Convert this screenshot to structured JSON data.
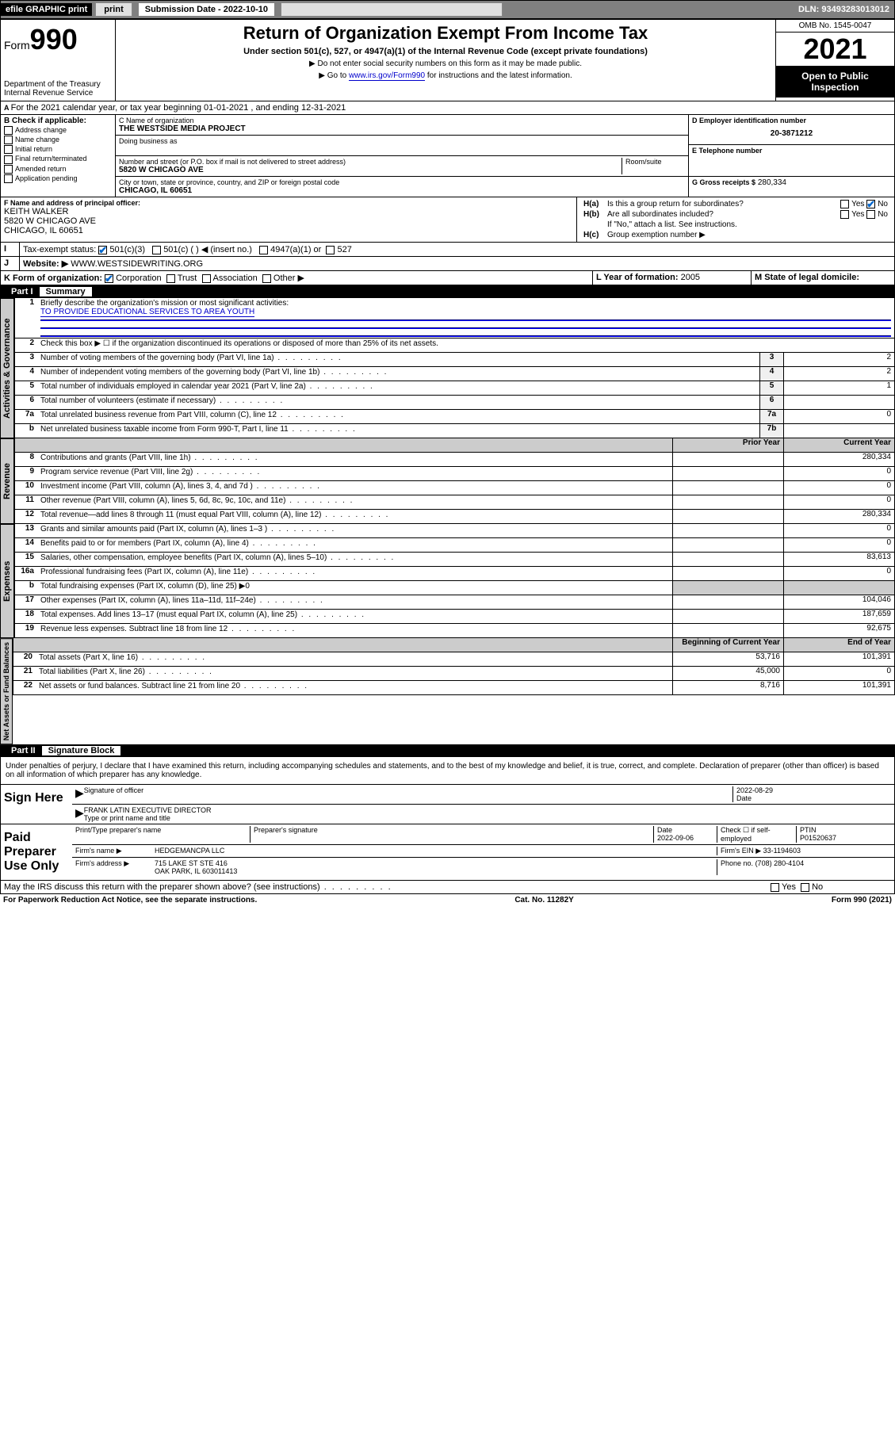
{
  "topbar": {
    "efile": "efile GRAPHIC print",
    "submission_lbl": "Submission Date - 2022-10-10",
    "dln": "DLN: 93493283013012"
  },
  "header": {
    "form": "Form",
    "formno": "990",
    "dept": "Department of the Treasury Internal Revenue Service",
    "title": "Return of Organization Exempt From Income Tax",
    "sub": "Under section 501(c), 527, or 4947(a)(1) of the Internal Revenue Code (except private foundations)",
    "note1": "▶ Do not enter social security numbers on this form as it may be made public.",
    "note2_pre": "▶ Go to ",
    "note2_link": "www.irs.gov/Form990",
    "note2_post": " for instructions and the latest information.",
    "omb": "OMB No. 1545-0047",
    "year": "2021",
    "open": "Open to Public Inspection"
  },
  "periodA": "For the 2021 calendar year, or tax year beginning 01-01-2021 , and ending 12-31-2021",
  "boxB": {
    "title": "B Check if applicable:",
    "items": [
      "Address change",
      "Name change",
      "Initial return",
      "Final return/terminated",
      "Amended return",
      "Application pending"
    ]
  },
  "boxC": {
    "lbl_name": "C Name of organization",
    "name": "THE WESTSIDE MEDIA PROJECT",
    "lbl_dba": "Doing business as",
    "lbl_addr": "Number and street (or P.O. box if mail is not delivered to street address)",
    "lbl_room": "Room/suite",
    "addr": "5820 W CHICAGO AVE",
    "lbl_city": "City or town, state or province, country, and ZIP or foreign postal code",
    "city": "CHICAGO, IL  60651"
  },
  "boxD": {
    "lbl": "D Employer identification number",
    "val": "20-3871212"
  },
  "boxE": {
    "lbl": "E Telephone number"
  },
  "boxG": {
    "lbl": "G Gross receipts $",
    "val": "280,334"
  },
  "boxF": {
    "lbl": "F Name and address of principal officer:",
    "name": "KEITH WALKER",
    "addr1": "5820 W CHICAGO AVE",
    "addr2": "CHICAGO, IL  60651"
  },
  "boxH": {
    "a_lbl": "H(a)",
    "a_txt": "Is this a group return for subordinates?",
    "b_lbl": "H(b)",
    "b_txt": "Are all subordinates included?",
    "note": "If \"No,\" attach a list. See instructions.",
    "c_lbl": "H(c)",
    "c_txt": "Group exemption number ▶",
    "yes": "Yes",
    "no": "No"
  },
  "boxI": {
    "lbl": "Tax-exempt status:",
    "opts": [
      "501(c)(3)",
      "501(c) (  ) ◀ (insert no.)",
      "4947(a)(1) or",
      "527"
    ]
  },
  "boxJ": {
    "lbl": "Website: ▶",
    "val": "WWW.WESTSIDEWRITING.ORG"
  },
  "boxK": {
    "lbl": "K Form of organization:",
    "opts": [
      "Corporation",
      "Trust",
      "Association",
      "Other ▶"
    ]
  },
  "boxL": {
    "lbl": "L Year of formation:",
    "val": "2005"
  },
  "boxM": {
    "lbl": "M State of legal domicile:"
  },
  "partI": {
    "hdr_pt": "Part I",
    "hdr_ttl": "Summary",
    "l1_lbl": "Briefly describe the organization's mission or most significant activities:",
    "l1_val": "TO PROVIDE EDUCATIONAL SERVICES TO AREA YOUTH",
    "l2": "Check this box ▶ ☐ if the organization discontinued its operations or disposed of more than 25% of its net assets.",
    "tabs": {
      "gov": "Activities & Governance",
      "rev": "Revenue",
      "exp": "Expenses",
      "net": "Net Assets or Fund Balances"
    },
    "lines_gov": [
      {
        "n": "3",
        "d": "Number of voting members of the governing body (Part VI, line 1a)",
        "b": "3",
        "v": "2"
      },
      {
        "n": "4",
        "d": "Number of independent voting members of the governing body (Part VI, line 1b)",
        "b": "4",
        "v": "2"
      },
      {
        "n": "5",
        "d": "Total number of individuals employed in calendar year 2021 (Part V, line 2a)",
        "b": "5",
        "v": "1"
      },
      {
        "n": "6",
        "d": "Total number of volunteers (estimate if necessary)",
        "b": "6",
        "v": ""
      },
      {
        "n": "7a",
        "d": "Total unrelated business revenue from Part VIII, column (C), line 12",
        "b": "7a",
        "v": "0"
      },
      {
        "n": "b",
        "d": "Net unrelated business taxable income from Form 990-T, Part I, line 11",
        "b": "7b",
        "v": ""
      }
    ],
    "col_prior": "Prior Year",
    "col_curr": "Current Year",
    "lines_rev": [
      {
        "n": "8",
        "d": "Contributions and grants (Part VIII, line 1h)",
        "p": "",
        "c": "280,334"
      },
      {
        "n": "9",
        "d": "Program service revenue (Part VIII, line 2g)",
        "p": "",
        "c": "0"
      },
      {
        "n": "10",
        "d": "Investment income (Part VIII, column (A), lines 3, 4, and 7d )",
        "p": "",
        "c": "0"
      },
      {
        "n": "11",
        "d": "Other revenue (Part VIII, column (A), lines 5, 6d, 8c, 9c, 10c, and 11e)",
        "p": "",
        "c": "0"
      },
      {
        "n": "12",
        "d": "Total revenue—add lines 8 through 11 (must equal Part VIII, column (A), line 12)",
        "p": "",
        "c": "280,334"
      }
    ],
    "lines_exp": [
      {
        "n": "13",
        "d": "Grants and similar amounts paid (Part IX, column (A), lines 1–3 )",
        "p": "",
        "c": "0"
      },
      {
        "n": "14",
        "d": "Benefits paid to or for members (Part IX, column (A), line 4)",
        "p": "",
        "c": "0"
      },
      {
        "n": "15",
        "d": "Salaries, other compensation, employee benefits (Part IX, column (A), lines 5–10)",
        "p": "",
        "c": "83,613"
      },
      {
        "n": "16a",
        "d": "Professional fundraising fees (Part IX, column (A), line 11e)",
        "p": "",
        "c": "0"
      },
      {
        "n": "b",
        "d": "Total fundraising expenses (Part IX, column (D), line 25) ▶0",
        "shade": true
      },
      {
        "n": "17",
        "d": "Other expenses (Part IX, column (A), lines 11a–11d, 11f–24e)",
        "p": "",
        "c": "104,046"
      },
      {
        "n": "18",
        "d": "Total expenses. Add lines 13–17 (must equal Part IX, column (A), line 25)",
        "p": "",
        "c": "187,659"
      },
      {
        "n": "19",
        "d": "Revenue less expenses. Subtract line 18 from line 12",
        "p": "",
        "c": "92,675"
      }
    ],
    "col_beg": "Beginning of Current Year",
    "col_end": "End of Year",
    "lines_net": [
      {
        "n": "20",
        "d": "Total assets (Part X, line 16)",
        "p": "53,716",
        "c": "101,391"
      },
      {
        "n": "21",
        "d": "Total liabilities (Part X, line 26)",
        "p": "45,000",
        "c": "0"
      },
      {
        "n": "22",
        "d": "Net assets or fund balances. Subtract line 21 from line 20",
        "p": "8,716",
        "c": "101,391"
      }
    ]
  },
  "partII": {
    "hdr_pt": "Part II",
    "hdr_ttl": "Signature Block",
    "decl": "Under penalties of perjury, I declare that I have examined this return, including accompanying schedules and statements, and to the best of my knowledge and belief, it is true, correct, and complete. Declaration of preparer (other than officer) is based on all information of which preparer has any knowledge.",
    "sign_here": "Sign Here",
    "sig_officer": "Signature of officer",
    "sig_date": "2022-08-29",
    "date_lbl": "Date",
    "officer_name": "FRANK LATIN  EXECUTIVE DIRECTOR",
    "type_name": "Type or print name and title",
    "paid_prep": "Paid Preparer Use Only",
    "prep_name_lbl": "Print/Type preparer's name",
    "prep_sig_lbl": "Preparer's signature",
    "prep_date_lbl": "Date",
    "prep_date": "2022-09-06",
    "check_self": "Check ☐ if self-employed",
    "ptin_lbl": "PTIN",
    "ptin": "P01520637",
    "firm_name_lbl": "Firm's name    ▶",
    "firm_name": "HEDGEMANCPA LLC",
    "firm_ein_lbl": "Firm's EIN ▶",
    "firm_ein": "33-1194603",
    "firm_addr_lbl": "Firm's address ▶",
    "firm_addr1": "715 LAKE ST STE 416",
    "firm_addr2": "OAK PARK, IL  603011413",
    "phone_lbl": "Phone no.",
    "phone": "(708) 280-4104",
    "discuss": "May the IRS discuss this return with the preparer shown above? (see instructions)",
    "yes": "Yes",
    "no": "No"
  },
  "footer": {
    "pra": "For Paperwork Reduction Act Notice, see the separate instructions.",
    "cat": "Cat. No. 11282Y",
    "form": "Form 990 (2021)"
  }
}
